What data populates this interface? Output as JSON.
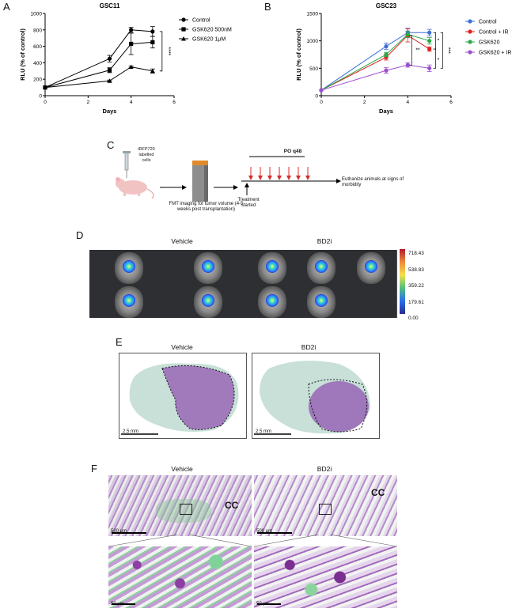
{
  "panels": {
    "a": "A",
    "b": "B",
    "c": "C",
    "d": "D",
    "e": "E",
    "f": "F"
  },
  "colors": {
    "control": "#3b6fd8",
    "control_ir": "#e02020",
    "gsk620": "#29a847",
    "gsk620_ir": "#9b4fd0"
  },
  "chart_data": [
    {
      "type": "line",
      "title": "GSC11",
      "xlabel": "Days",
      "ylabel": "RLU (% of control)",
      "xlim": [
        0,
        6
      ],
      "ylim": [
        0,
        1000
      ],
      "xticks": [
        "0",
        "2",
        "4",
        "6"
      ],
      "yticks": [
        "0",
        "200",
        "400",
        "600",
        "800",
        "1000"
      ],
      "x": [
        0,
        3,
        4,
        5
      ],
      "series": [
        {
          "name": "Control",
          "values": [
            100,
            450,
            800,
            780
          ],
          "err": [
            0,
            40,
            30,
            60
          ],
          "marker": "circle"
        },
        {
          "name": "GSK620 500nM",
          "values": [
            100,
            310,
            630,
            650
          ],
          "err": [
            0,
            30,
            130,
            70
          ],
          "marker": "square"
        },
        {
          "name": "GSK620 1μM",
          "values": [
            100,
            180,
            350,
            300
          ],
          "err": [
            0,
            10,
            10,
            25
          ],
          "marker": "triangle"
        }
      ],
      "significance": "****",
      "legend": "right"
    },
    {
      "type": "line",
      "title": "GSC23",
      "xlabel": "Days",
      "ylabel": "RLU (% of control)",
      "xlim": [
        0,
        6
      ],
      "ylim": [
        0,
        1500
      ],
      "xticks": [
        "0",
        "2",
        "4",
        "6"
      ],
      "yticks": [
        "0",
        "500",
        "1000",
        "1500"
      ],
      "x": [
        0,
        3,
        4,
        5
      ],
      "series": [
        {
          "name": "Control",
          "values": [
            100,
            900,
            1150,
            1150
          ],
          "err": [
            0,
            60,
            80,
            60
          ],
          "color": "#3b6fd8"
        },
        {
          "name": "Control + IR",
          "values": [
            100,
            700,
            1100,
            850
          ],
          "err": [
            0,
            50,
            120,
            40
          ],
          "color": "#e02020"
        },
        {
          "name": "GSK620",
          "values": [
            100,
            750,
            1120,
            1000
          ],
          "err": [
            0,
            40,
            60,
            60
          ],
          "color": "#29a847"
        },
        {
          "name": "GSK620 + IR",
          "values": [
            100,
            460,
            560,
            500
          ],
          "err": [
            0,
            50,
            40,
            60
          ],
          "color": "#9b4fd0"
        }
      ],
      "significance": [
        "*",
        "**",
        "*",
        "***"
      ],
      "legend": "right"
    }
  ],
  "schematic": {
    "cells_label": "iRFP720 labelled cells",
    "fmt_label": "FMT imaging for tumor volume (4-5 weeks post transplantation)",
    "dosing_label": "PO q48",
    "treatment_label": "Treatment started",
    "outcome_label": "Euthanize animals at signs of morbidity"
  },
  "imaging": {
    "vehicle": "Vehicle",
    "bd2i": "BD2i",
    "colorbar_ticks": [
      "718.43",
      "538.83",
      "359.22",
      "179.61",
      "0.00"
    ]
  },
  "histology": {
    "vehicle": "Vehicle",
    "bd2i": "BD2i",
    "scale_e": "2.5 mm",
    "cc": "CC",
    "scale_500": "500 μm",
    "scale_50": "50 μm"
  }
}
